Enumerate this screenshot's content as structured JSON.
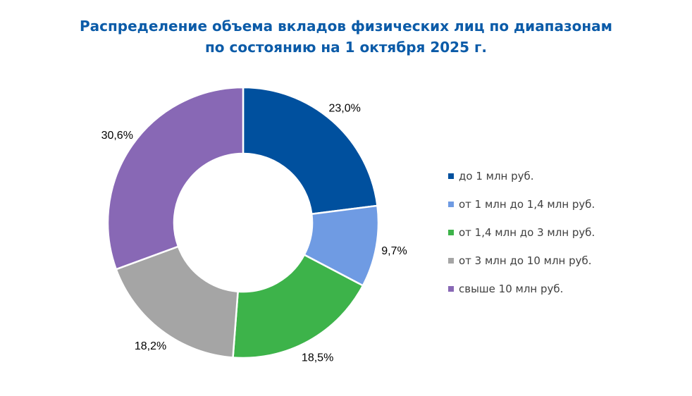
{
  "chart_data": {
    "type": "pie",
    "donut": true,
    "title": "Распределение объема вкладов физических лиц по диапазонам",
    "subtitle": "по состоянию на 1 октября 2025 г.",
    "categories": [
      "до 1 млн руб.",
      "от 1 млн до 1,4 млн руб.",
      "от 1,4 млн до 3 млн руб.",
      "от 3 млн до 10 млн руб.",
      "свыше 10 млн руб."
    ],
    "values": [
      23.0,
      9.7,
      18.5,
      18.2,
      30.6
    ],
    "data_labels": [
      "23,0%",
      "9,7%",
      "18,5%",
      "18,2%",
      "30,6%"
    ],
    "colors": [
      "#00509E",
      "#6F9BE3",
      "#3DB34A",
      "#A5A5A5",
      "#8868B5"
    ],
    "legend_position": "right"
  }
}
